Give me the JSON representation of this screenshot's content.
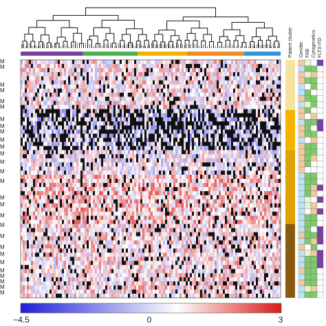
{
  "chart_data": {
    "type": "heatmap",
    "title": "",
    "colorbar": {
      "min": -4.5,
      "mid": 0,
      "max": 3,
      "tick_labels": [
        "−4.5",
        "0",
        "3"
      ],
      "colors": {
        "low": "#1f1fd6",
        "mid": "#ffffff",
        "high": "#d81b1b"
      }
    },
    "annotation_labels": [
      "Patient cluster",
      "Gender",
      "FAB",
      "Cytogenetics",
      "FLT3-ITD"
    ],
    "column_clusters": [
      {
        "color": "#7b3fa0",
        "fraction": 0.24
      },
      {
        "color": "#4caf50",
        "fraction": 0.21
      },
      {
        "color": "#f0b400",
        "fraction": 0.19
      },
      {
        "color": "#f08a24",
        "fraction": 0.22
      },
      {
        "color": "#2f96d8",
        "fraction": 0.14
      }
    ],
    "row_clusters": [
      {
        "color": "#f6e3a0",
        "fraction": 0.21
      },
      {
        "color": "#f5b400",
        "fraction": 0.17
      },
      {
        "color": "#e0a000",
        "fraction": 0.31
      },
      {
        "color": "#8a5a0f",
        "fraction": 0.31
      }
    ],
    "row_label_fragment": "M",
    "annotation_colors": [
      "#bfe3f5",
      "#f3c9a0",
      "#7ec96b",
      "#7a3fa6",
      "#ffffff",
      "#e8f5d0"
    ]
  }
}
